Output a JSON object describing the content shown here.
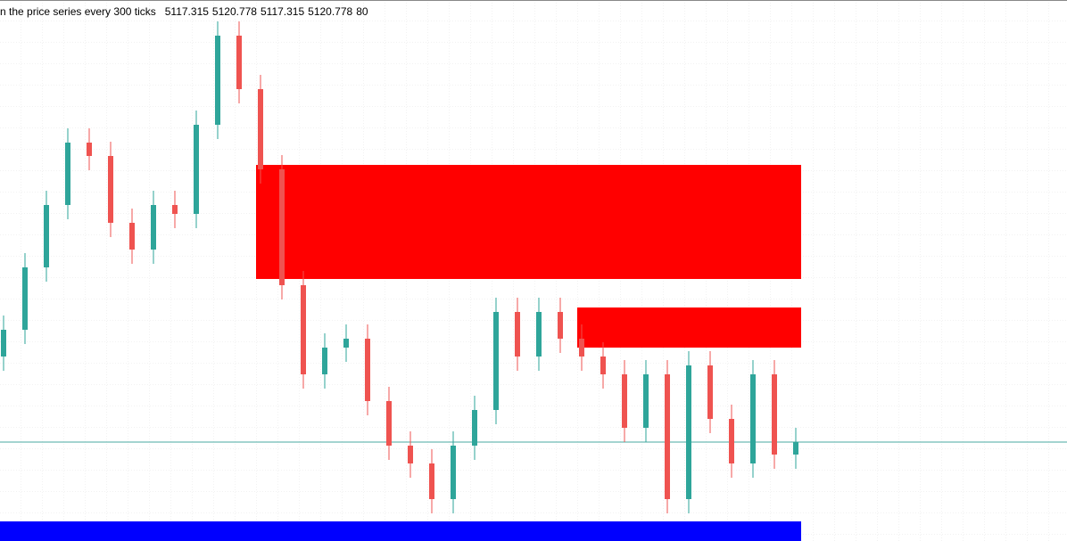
{
  "chart_data": {
    "type": "candlestick",
    "title": "n the price series every 300 ticks",
    "header_values": [
      5117.315,
      5120.778,
      5117.315,
      5120.778,
      80
    ],
    "open": [
      5125.58,
      5127.08,
      5130.58,
      5134.08,
      5137.58,
      5136.83,
      5133.08,
      5131.58,
      5134.08,
      5133.58,
      5138.58,
      5143.58,
      5140.58,
      5136.08,
      5129.58,
      5124.58,
      5126.08,
      5126.58,
      5123.08,
      5120.58,
      5119.58,
      5117.58,
      5120.58,
      5122.58,
      5128.08,
      5125.58,
      5128.08,
      5126.58,
      5125.58,
      5124.58,
      5121.58,
      5124.58,
      5117.58,
      5125.08,
      5122.08,
      5119.58,
      5124.58,
      5120.08
    ],
    "high": [
      5127.88,
      5131.38,
      5134.88,
      5138.38,
      5138.38,
      5137.63,
      5133.88,
      5134.88,
      5134.88,
      5139.38,
      5144.38,
      5144.38,
      5141.38,
      5136.88,
      5130.38,
      5126.88,
      5127.38,
      5127.38,
      5123.88,
      5121.38,
      5120.38,
      5121.38,
      5123.38,
      5128.88,
      5128.88,
      5128.88,
      5128.88,
      5127.38,
      5126.38,
      5125.38,
      5125.38,
      5125.38,
      5125.88,
      5125.88,
      5122.88,
      5125.38,
      5125.38,
      5121.58
    ],
    "low": [
      5124.78,
      5126.28,
      5129.78,
      5133.28,
      5136.03,
      5132.28,
      5130.78,
      5130.78,
      5132.78,
      5132.78,
      5137.78,
      5139.78,
      5135.28,
      5128.78,
      5123.78,
      5123.78,
      5125.28,
      5122.28,
      5119.78,
      5118.78,
      5116.78,
      5116.78,
      5119.78,
      5121.78,
      5124.78,
      5124.78,
      5125.78,
      5124.78,
      5123.78,
      5120.78,
      5120.78,
      5116.78,
      5116.78,
      5121.28,
      5118.78,
      5118.78,
      5119.28,
      5119.28
    ],
    "close": [
      5127.08,
      5130.58,
      5134.08,
      5137.58,
      5136.83,
      5133.08,
      5131.58,
      5134.08,
      5133.58,
      5138.58,
      5143.58,
      5140.58,
      5136.08,
      5129.58,
      5124.58,
      5126.08,
      5126.58,
      5123.08,
      5120.58,
      5119.58,
      5117.58,
      5120.58,
      5122.58,
      5128.08,
      5125.58,
      5128.08,
      5126.58,
      5125.58,
      5124.58,
      5121.58,
      5124.58,
      5117.58,
      5125.08,
      5122.08,
      5119.58,
      5124.58,
      5120.08,
      5120.78
    ],
    "up_color": "#2ea59a",
    "down_color": "#ef5350",
    "zones": [
      {
        "start": 12,
        "top": 5136.33,
        "bottom": 5129.93,
        "color": "#ff0000"
      },
      {
        "start": 27,
        "top": 5128.33,
        "bottom": 5126.08,
        "color": "#ff0000"
      },
      {
        "start": 0,
        "top": 5116.33,
        "bottom": 5115.23,
        "color": "#0000ff"
      }
    ],
    "price_line_color": "#4aa8a0",
    "ylim": [
      5115.23,
      5145.58
    ]
  }
}
